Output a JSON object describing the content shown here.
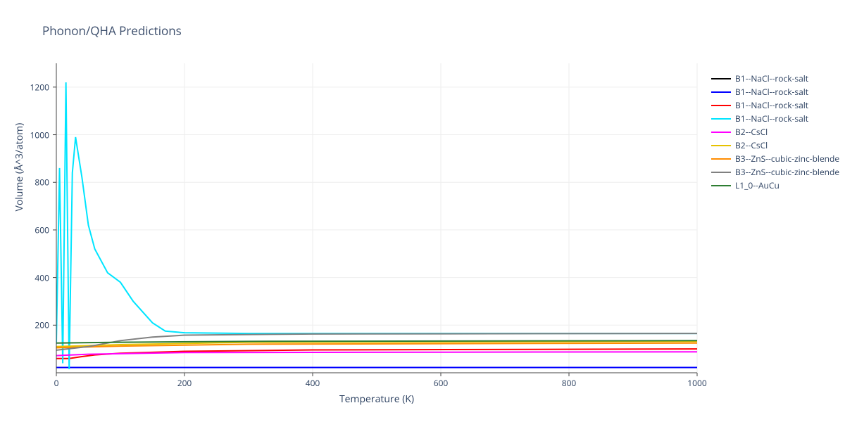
{
  "title": "Phonon/QHA Predictions",
  "xlabel": "Temperature (K)",
  "ylabel": "Volume (Å^3/atom)",
  "background_color": "#ffffff",
  "grid_color": "#eeeeee",
  "axis_line_color": "#444444",
  "tick_font_size": 12,
  "label_font_size": 14,
  "title_font_size": 17,
  "line_width": 2,
  "chart": {
    "type": "line",
    "xlim": [
      0,
      1000
    ],
    "ylim": [
      0,
      1300
    ],
    "xticks": [
      0,
      200,
      400,
      600,
      800,
      1000
    ],
    "yticks": [
      200,
      400,
      600,
      800,
      1000,
      1200
    ],
    "series": [
      {
        "name": "B1--NaCl--rock-salt",
        "color": "#000000",
        "x": [
          0,
          1000
        ],
        "y": [
          22,
          22
        ]
      },
      {
        "name": "B1--NaCl--rock-salt",
        "color": "#0000ff",
        "x": [
          0,
          1000
        ],
        "y": [
          22,
          22
        ]
      },
      {
        "name": "B1--NaCl--rock-salt",
        "color": "#ff0000",
        "x": [
          0,
          20,
          40,
          60,
          100,
          200,
          400,
          1000
        ],
        "y": [
          60,
          60,
          68,
          75,
          82,
          90,
          96,
          100
        ]
      },
      {
        "name": "B1--NaCl--rock-salt",
        "color": "#00e5ff",
        "x": [
          0,
          5,
          10,
          15,
          20,
          25,
          30,
          40,
          50,
          60,
          80,
          100,
          120,
          150,
          170,
          200,
          300,
          1000
        ],
        "y": [
          120,
          860,
          40,
          1220,
          15,
          840,
          990,
          820,
          620,
          520,
          420,
          380,
          300,
          210,
          175,
          168,
          165,
          165
        ]
      },
      {
        "name": "B2--CsCl",
        "color": "#ff00ff",
        "x": [
          0,
          50,
          200,
          1000
        ],
        "y": [
          72,
          78,
          85,
          88
        ]
      },
      {
        "name": "B2--CsCl",
        "color": "#e6c200",
        "x": [
          0,
          100,
          300,
          1000
        ],
        "y": [
          110,
          118,
          128,
          132
        ]
      },
      {
        "name": "B3--ZnS--cubic-zinc-blende",
        "color": "#ff8c00",
        "x": [
          0,
          100,
          300,
          1000
        ],
        "y": [
          105,
          112,
          120,
          125
        ]
      },
      {
        "name": "B3--ZnS--cubic-zinc-blende",
        "color": "#808080",
        "x": [
          0,
          50,
          100,
          150,
          200,
          400,
          1000
        ],
        "y": [
          95,
          110,
          135,
          150,
          158,
          163,
          165
        ]
      },
      {
        "name": "L1_0--AuCu",
        "color": "#2e7d32",
        "x": [
          0,
          100,
          300,
          1000
        ],
        "y": [
          125,
          128,
          132,
          135
        ]
      }
    ]
  }
}
